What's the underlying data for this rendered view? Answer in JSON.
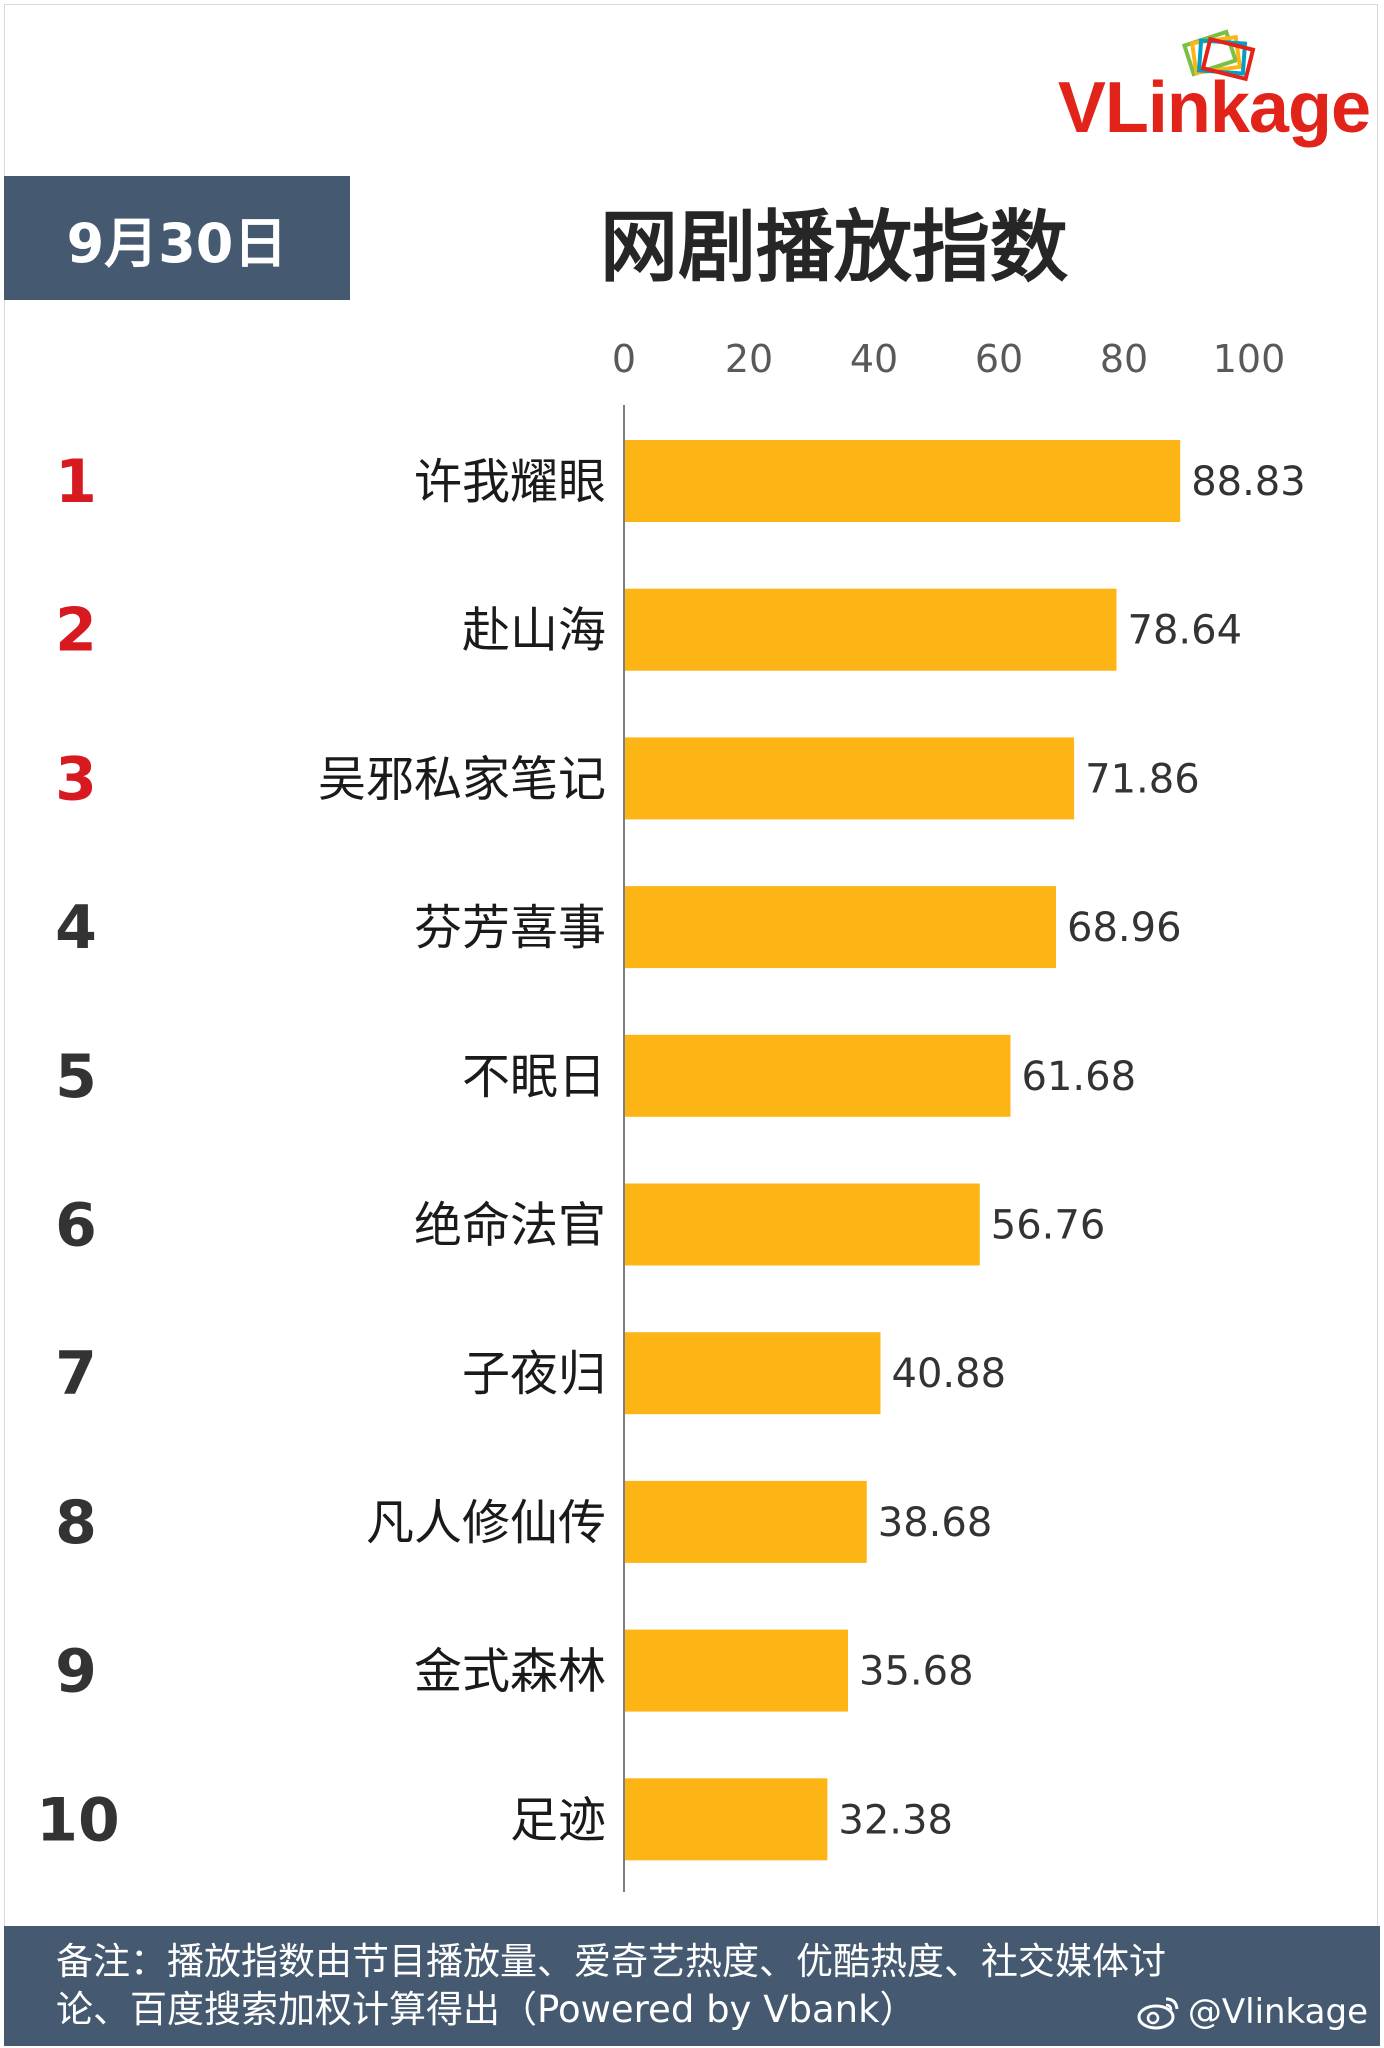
{
  "brand": {
    "logo_text": "VLinkage",
    "colors": {
      "red": "#e2231a",
      "box": "#455a70",
      "bar": "#fdb515",
      "rank_top": "#d71920",
      "rank_rest": "#333333"
    }
  },
  "header": {
    "date": "9月30日",
    "title": "网剧播放指数"
  },
  "chart_data": {
    "type": "bar",
    "orientation": "horizontal",
    "title": "网剧播放指数",
    "xlim": [
      0,
      100
    ],
    "xticks": [
      0,
      20,
      40,
      60,
      80,
      100
    ],
    "ranks": [
      "1",
      "2",
      "3",
      "4",
      "5",
      "6",
      "7",
      "8",
      "9",
      "10"
    ],
    "categories": [
      "许我耀眼",
      "赴山海",
      "吴邪私家笔记",
      "芬芳喜事",
      "不眠日",
      "绝命法官",
      "子夜归",
      "凡人修仙传",
      "金式森林",
      "足迹"
    ],
    "values": [
      88.83,
      78.64,
      71.86,
      68.96,
      61.68,
      56.76,
      40.88,
      38.68,
      35.68,
      32.38
    ],
    "value_labels": [
      "88.83",
      "78.64",
      "71.86",
      "68.96",
      "61.68",
      "56.76",
      "40.88",
      "38.68",
      "35.68",
      "32.38"
    ],
    "grid": false,
    "legend": "none"
  },
  "footer": {
    "note_line1": "备注：播放指数由节目播放量、爱奇艺热度、优酷热度、社交媒体讨",
    "note_line2": "论、百度搜索加权计算得出（Powered by Vbank）",
    "weibo_handle": "@Vlinkage",
    "weibo_icon": "weibo-icon"
  }
}
